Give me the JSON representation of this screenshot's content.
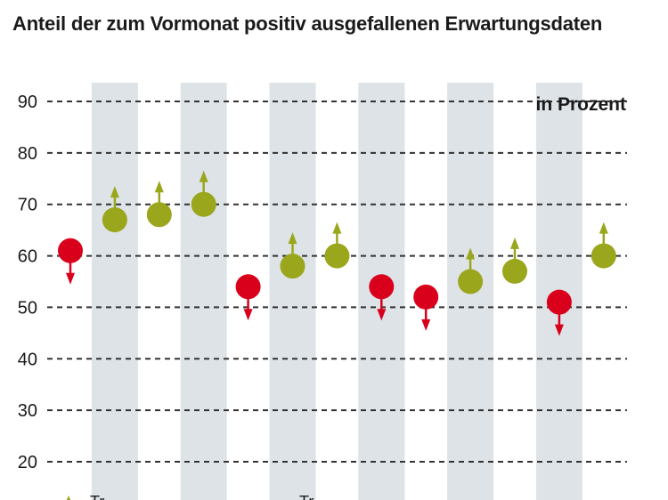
{
  "chart_data": {
    "type": "scatter",
    "title": "Anteil der zum Vormonat positiv ausgefallenen Erwartungsdaten",
    "unit_label": "in Prozent",
    "ylim": [
      20,
      90
    ],
    "yticks": [
      20,
      30,
      40,
      50,
      60,
      70,
      80,
      90
    ],
    "grid": "horizontal dashed",
    "points": [
      {
        "value": 61,
        "trend": "down"
      },
      {
        "value": 67,
        "trend": "up"
      },
      {
        "value": 68,
        "trend": "up"
      },
      {
        "value": 70,
        "trend": "up"
      },
      {
        "value": 54,
        "trend": "down"
      },
      {
        "value": 58,
        "trend": "up"
      },
      {
        "value": 60,
        "trend": "up"
      },
      {
        "value": 54,
        "trend": "down"
      },
      {
        "value": 52,
        "trend": "down"
      },
      {
        "value": 55,
        "trend": "up"
      },
      {
        "value": 57,
        "trend": "up"
      },
      {
        "value": 51,
        "trend": "down"
      },
      {
        "value": 60,
        "trend": "up"
      }
    ],
    "shaded_columns": [
      1,
      3,
      5,
      7,
      9,
      11
    ],
    "legend": [
      {
        "label": "Tr",
        "trend": "up"
      },
      {
        "label": "Tr",
        "trend": "down"
      }
    ],
    "colors": {
      "up": "#9aa61b",
      "down": "#d9001b",
      "band": "#dde3e7",
      "grid": "#333333"
    }
  }
}
